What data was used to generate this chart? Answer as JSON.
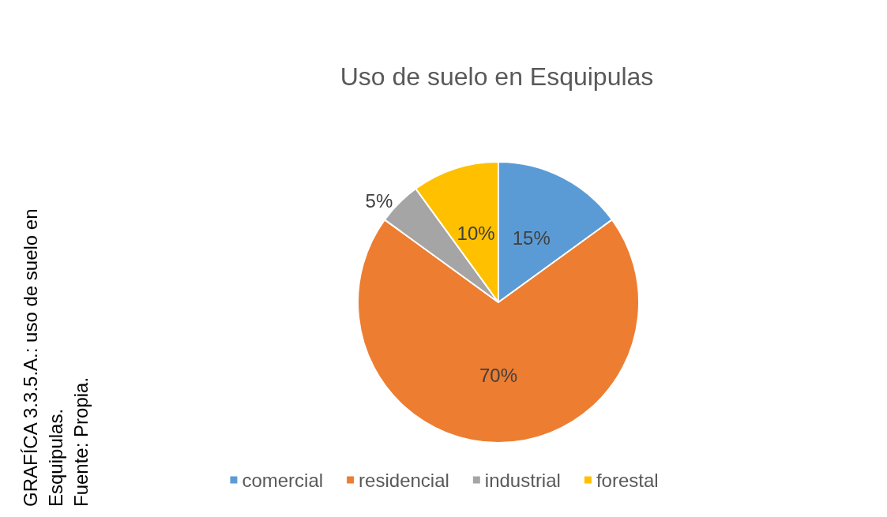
{
  "chart_data": {
    "type": "pie",
    "title": "Uso de suelo en Esquipulas",
    "categories": [
      "comercial",
      "residencial",
      "industrial",
      "forestal"
    ],
    "values": [
      15,
      70,
      5,
      10
    ],
    "colors": [
      "#5b9bd5",
      "#ed7d31",
      "#a5a5a5",
      "#ffc000"
    ],
    "value_labels": [
      "15%",
      "70%",
      "5%",
      "10%"
    ],
    "legend": "bottom",
    "annotations": [
      "GRAFÍCA 3.3.5.A.: uso de suelo en Esquipulas.",
      "Fuente: Propia."
    ]
  }
}
